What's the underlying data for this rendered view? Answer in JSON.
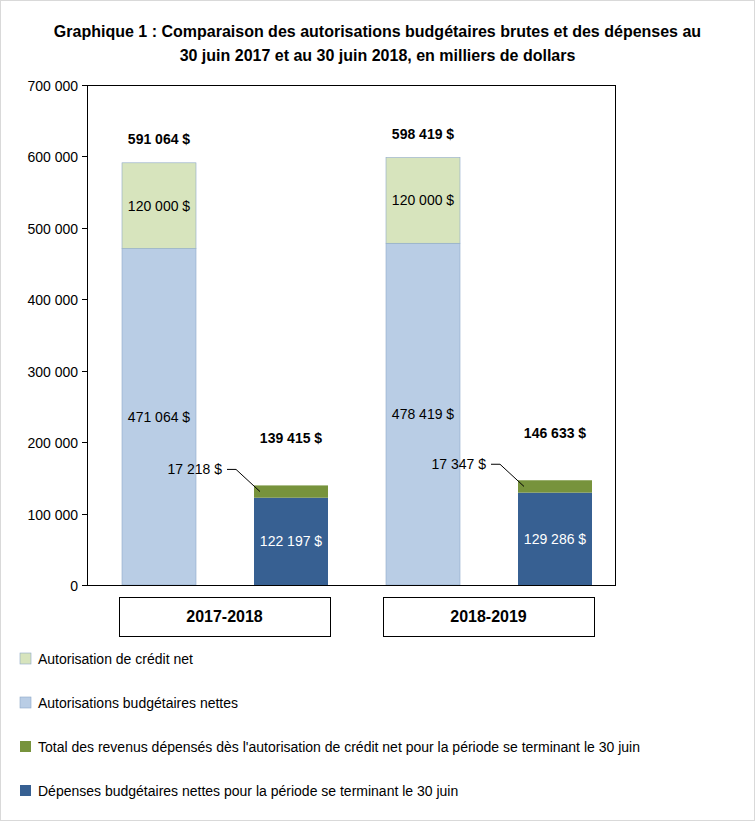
{
  "chart_data": {
    "type": "bar",
    "title": "Graphique 1 : Comparaison des autorisations budgétaires brutes et des dépenses au 30 juin 2017 et au 30 juin 2018, en milliers de dollars",
    "categories": [
      "2017-2018",
      null,
      "2018-2019",
      null
    ],
    "stacked": true,
    "data_labels": true,
    "grid": false,
    "legend": "bottom",
    "ylim": [
      0,
      700000
    ],
    "yticks": [
      0,
      {
        "value": 100000,
        "label": "100 000"
      },
      {
        "value": 200000,
        "label": "200 000"
      },
      {
        "value": 300000,
        "label": "300 000"
      },
      {
        "value": 400000,
        "label": "400 000"
      },
      {
        "value": 500000,
        "label": "500 000"
      },
      {
        "value": 600000,
        "label": "600 000"
      },
      {
        "value": 700000,
        "label": "700 000"
      }
    ],
    "series": [
      {
        "name": "Autorisation de crédit net",
        "color": "#d7e4bd",
        "values": [
          120000,
          null,
          120000,
          null
        ],
        "value_labels": [
          "120 000 $",
          null,
          "120 000 $",
          null
        ]
      },
      {
        "name": "Autorisations budgétaires nettes",
        "color": "#b9cde5",
        "values": [
          471064,
          null,
          478419,
          null
        ],
        "value_labels": [
          "471 064 $",
          null,
          "478 419 $",
          null
        ]
      },
      {
        "name": "Total des revenus dépensés dès l'autorisation de crédit net pour la période se terminant le 30 juin",
        "color": "#77933c",
        "values": [
          null,
          17218,
          null,
          17347
        ],
        "value_labels": [
          null,
          "17 218 $",
          null,
          "17 347 $"
        ]
      },
      {
        "name": "Dépenses budgétaires nettes pour la période se terminant le 30 juin",
        "color": "#376092",
        "values": [
          null,
          122197,
          null,
          129286
        ],
        "value_labels": [
          null,
          "122 197 $",
          null,
          "129 286 $"
        ]
      }
    ],
    "totals": {
      "values": [
        591064,
        139415,
        598419,
        146633
      ],
      "value_labels": [
        "591 064 $",
        "139 415 $",
        "598 419 $",
        "146 633 $"
      ]
    }
  }
}
